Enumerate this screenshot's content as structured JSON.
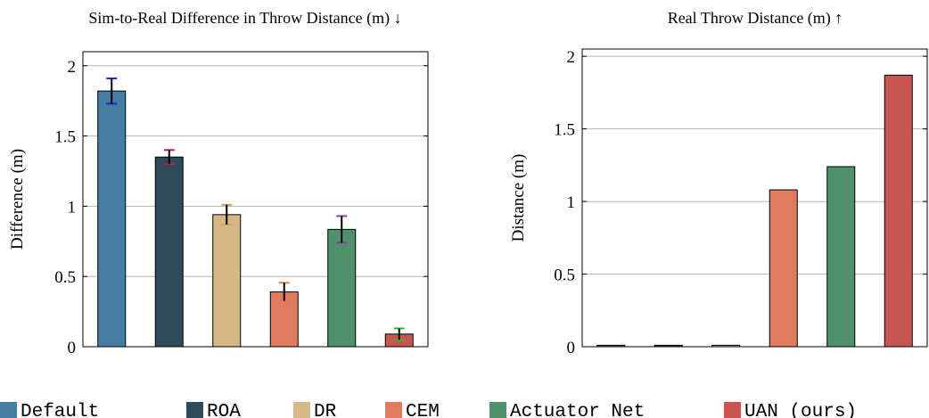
{
  "legend": [
    {
      "label": "Default",
      "color": "#447ea2"
    },
    {
      "label": "ROA",
      "color": "#2f4a5b"
    },
    {
      "label": "DR",
      "color": "#d5b886"
    },
    {
      "label": "CEM",
      "color": "#e07b5d"
    },
    {
      "label": "Actuator Net",
      "color": "#4f916b"
    },
    {
      "label": "UAN (ours)",
      "color": "#c95553"
    }
  ],
  "chart_data": [
    {
      "type": "bar",
      "title": "Sim-to-Real Difference in Throw Distance (m) ↓",
      "xlabel": "",
      "ylabel": "Difference (m)",
      "ylim": [
        0,
        2.1
      ],
      "yticks": [
        0,
        0.5,
        1,
        1.5,
        2
      ],
      "ytick_labels": [
        "0",
        "0.5",
        "1",
        "1.5",
        "2"
      ],
      "grid": true,
      "categories": [
        "Default",
        "ROA",
        "DR",
        "CEM",
        "Actuator Net",
        "UAN (ours)"
      ],
      "values": [
        1.82,
        1.35,
        0.94,
        0.39,
        0.835,
        0.09
      ],
      "errors": [
        0.09,
        0.05,
        0.07,
        0.065,
        0.095,
        0.04
      ],
      "error_cap_colors": [
        "#1f22d6",
        "#b8242f",
        "#d4a050",
        "#e07b5d",
        "#8e3fa0",
        "#22c722"
      ]
    },
    {
      "type": "bar",
      "title": "Real Throw Distance (m) ↑",
      "xlabel": "",
      "ylabel": "Distance (m)",
      "ylim": [
        0,
        2.05
      ],
      "yticks": [
        0,
        0.5,
        1,
        1.5,
        2
      ],
      "ytick_labels": [
        "0",
        "0.5",
        "1",
        "1.5",
        "2"
      ],
      "grid": true,
      "categories": [
        "Default",
        "ROA",
        "DR",
        "CEM",
        "Actuator Net",
        "UAN (ours)"
      ],
      "values": [
        0.01,
        0.01,
        0.01,
        1.08,
        1.24,
        1.87
      ]
    }
  ]
}
